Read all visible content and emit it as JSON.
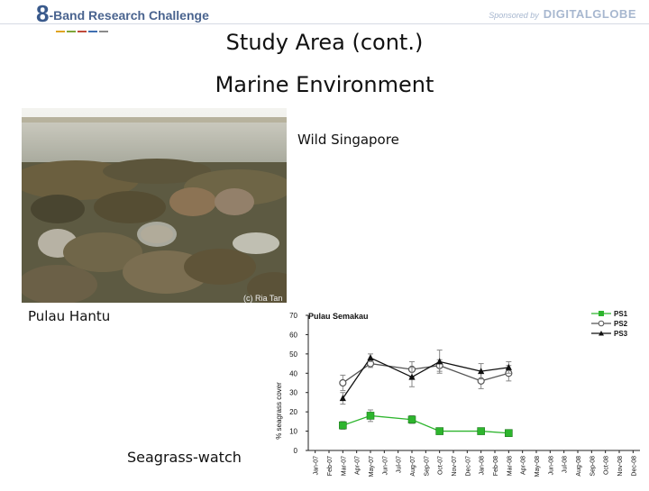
{
  "header": {
    "logo_mark": "8",
    "logo_text": "-Band Research Challenge",
    "sponsor_prefix": "Sponsored by",
    "sponsor_name": "DIGITALGLOBE"
  },
  "slide": {
    "title": "Study Area (cont.)",
    "subtitle": "Marine Environment"
  },
  "photo": {
    "credit": "(c) Ria Tan",
    "caption_right": "Wild Singapore",
    "caption_below": "Pulau Hantu"
  },
  "chart_caption": "Seagrass-watch",
  "chart_data": {
    "type": "line",
    "title": "Pulau Semakau",
    "ylabel": "% seagrass cover",
    "xlabel": "",
    "ylim": [
      0,
      70
    ],
    "yticks": [
      0,
      10,
      20,
      30,
      40,
      50,
      60,
      70
    ],
    "categories": [
      "Jan-07",
      "Feb-07",
      "Mar-07",
      "Apr-07",
      "May-07",
      "Jun-07",
      "Jul-07",
      "Aug-07",
      "Sep-07",
      "Oct-07",
      "Nov-07",
      "Dec-07",
      "Jan-08",
      "Feb-08",
      "Mar-08",
      "Apr-08",
      "May-08",
      "Jun-08",
      "Jul-08",
      "Aug-08",
      "Sep-08",
      "Oct-08",
      "Nov-08",
      "Dec-08"
    ],
    "legend_position": "top-right",
    "series": [
      {
        "name": "PS1",
        "color": "#2db52d",
        "marker": "square",
        "points": [
          [
            2,
            13,
            2
          ],
          [
            4,
            18,
            3
          ],
          [
            7,
            16,
            2
          ],
          [
            9,
            10,
            1
          ],
          [
            12,
            10,
            1
          ],
          [
            14,
            9,
            1
          ]
        ]
      },
      {
        "name": "PS2",
        "color": "#555555",
        "marker": "circle",
        "points": [
          [
            2,
            35,
            4
          ],
          [
            4,
            45,
            2
          ],
          [
            7,
            42,
            4
          ],
          [
            9,
            44,
            3
          ],
          [
            12,
            36,
            4
          ],
          [
            14,
            40,
            4
          ]
        ]
      },
      {
        "name": "PS3",
        "color": "#111111",
        "marker": "triangle",
        "points": [
          [
            2,
            27,
            3
          ],
          [
            4,
            48,
            2
          ],
          [
            7,
            38,
            5
          ],
          [
            9,
            46,
            6
          ],
          [
            12,
            41,
            4
          ],
          [
            14,
            43,
            3
          ]
        ]
      }
    ]
  }
}
